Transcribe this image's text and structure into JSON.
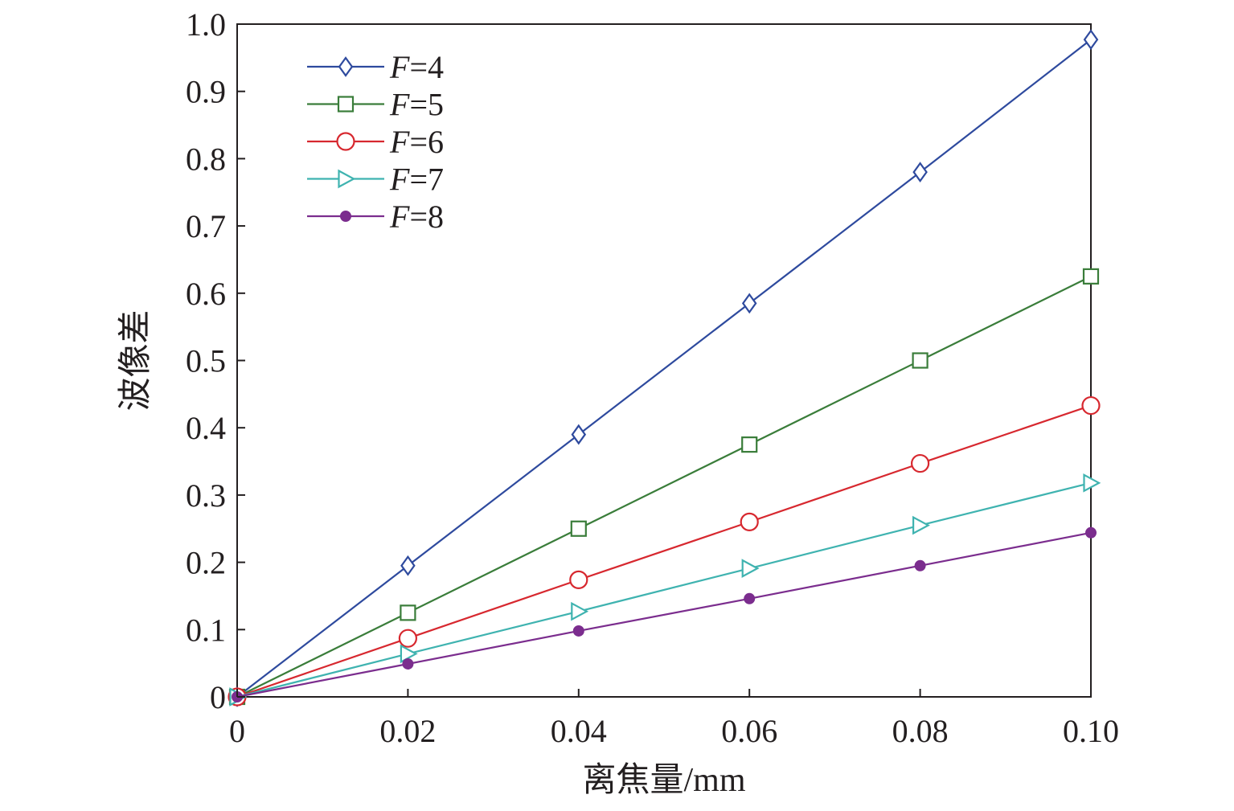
{
  "chart_data": {
    "type": "line",
    "title": "",
    "xlabel": "离焦量/mm",
    "ylabel": "波像差",
    "xlim": [
      0,
      0.1
    ],
    "ylim": [
      0,
      1.0
    ],
    "x_ticks": [
      "0",
      "0.02",
      "0.04",
      "0.06",
      "0.08",
      "0.10"
    ],
    "y_ticks": [
      "0",
      "0.1",
      "0.2",
      "0.3",
      "0.4",
      "0.5",
      "0.6",
      "0.7",
      "0.8",
      "0.9",
      "1.0"
    ],
    "x": [
      0,
      0.02,
      0.04,
      0.06,
      0.08,
      0.1
    ],
    "legend_position": "top-left",
    "grid": false,
    "series": [
      {
        "name": "F=4",
        "name_var": "F",
        "name_val": "=4",
        "color": "#2e4a9e",
        "marker": "diamond-open",
        "values": [
          0,
          0.195,
          0.39,
          0.585,
          0.78,
          0.977
        ]
      },
      {
        "name": "F=5",
        "name_var": "F",
        "name_val": "=5",
        "color": "#3a7d3a",
        "marker": "square-open",
        "values": [
          0,
          0.125,
          0.25,
          0.375,
          0.5,
          0.625
        ]
      },
      {
        "name": "F=6",
        "name_var": "F",
        "name_val": "=6",
        "color": "#d7282f",
        "marker": "circle-open",
        "values": [
          0,
          0.087,
          0.174,
          0.26,
          0.347,
          0.433
        ]
      },
      {
        "name": "F=7",
        "name_var": "F",
        "name_val": "=7",
        "color": "#3fb3b0",
        "marker": "triangle-right-open",
        "values": [
          0,
          0.064,
          0.127,
          0.191,
          0.255,
          0.318
        ]
      },
      {
        "name": "F=8",
        "name_var": "F",
        "name_val": "=8",
        "color": "#7b2d8e",
        "marker": "circle-filled",
        "values": [
          0,
          0.049,
          0.098,
          0.146,
          0.195,
          0.244
        ]
      }
    ]
  }
}
